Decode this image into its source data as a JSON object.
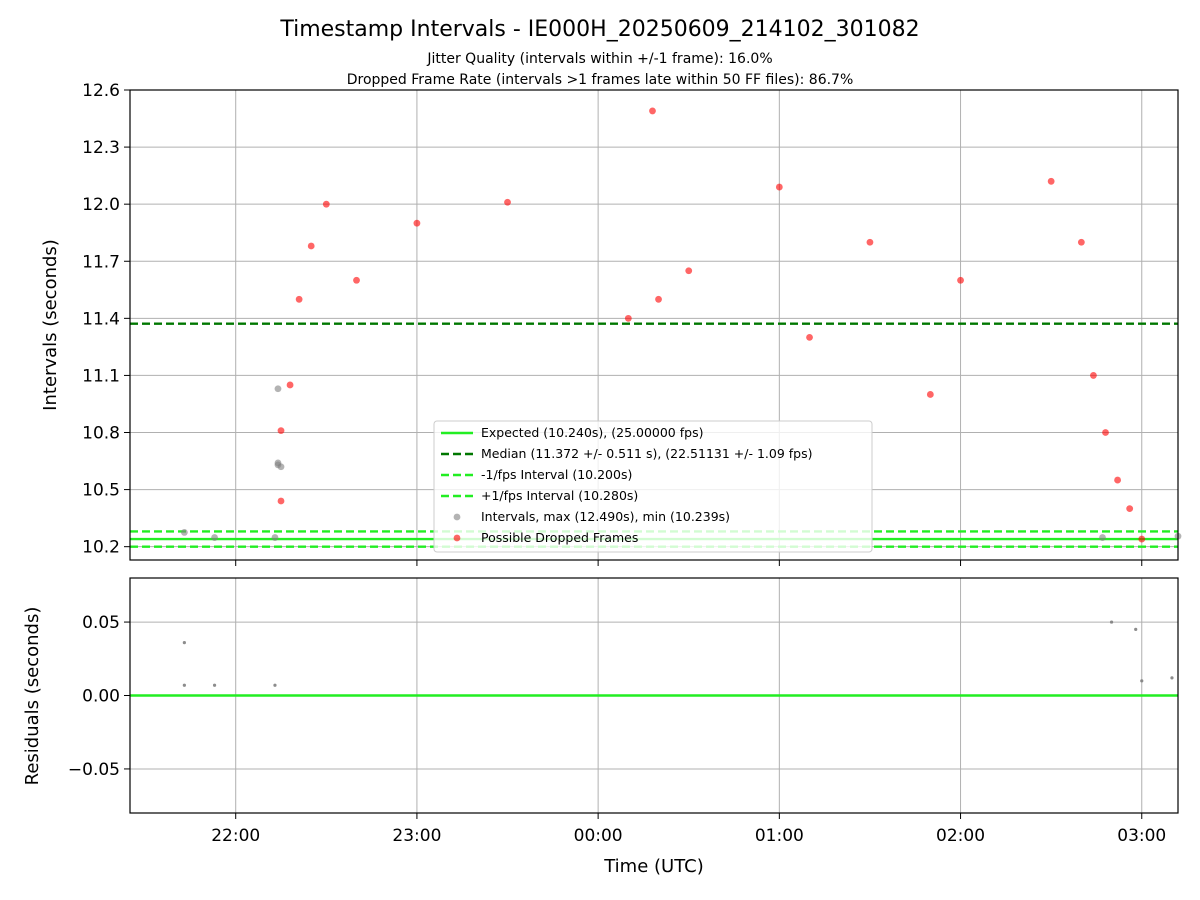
{
  "figure": {
    "title": "Timestamp Intervals - IE000H_20250609_214102_301082",
    "subtitle_line1": "Jitter Quality (intervals within +/-1 frame): 16.0%",
    "subtitle_line2": "Dropped Frame Rate (intervals >1 frames late within 50 FF files): 86.7%"
  },
  "chart_data": [
    {
      "type": "scatter",
      "ylabel": "Intervals (seconds)",
      "xlabel": "",
      "xlim": [
        "21:25",
        "03:12"
      ],
      "ylim": [
        10.13,
        12.6
      ],
      "yticks": [
        "10.2",
        "10.5",
        "10.8",
        "11.1",
        "11.4",
        "11.7",
        "12.0",
        "12.3",
        "12.6"
      ],
      "xticks": [
        "22:00",
        "23:00",
        "00:00",
        "01:00",
        "02:00",
        "03:00"
      ],
      "grid": true,
      "legend_position": "lower center",
      "reference_lines": [
        {
          "label": "Expected (10.240s), (25.00000 fps)",
          "y": 10.24,
          "style": "solid",
          "color": "#22ee22"
        },
        {
          "label": "Median (11.372 +/- 0.511 s), (22.51131 +/- 1.09 fps)",
          "y": 11.372,
          "style": "dashed",
          "color": "#007700"
        },
        {
          "label": "-1/fps Interval (10.200s)",
          "y": 10.2,
          "style": "dashed",
          "color": "#22ee22"
        },
        {
          "label": "+1/fps Interval (10.280s)",
          "y": 10.28,
          "style": "dashed",
          "color": "#22ee22"
        }
      ],
      "series": [
        {
          "name": "Intervals, max (12.490s), min (10.239s)",
          "color": "#808080",
          "points": [
            [
              "21:43",
              10.275
            ],
            [
              "21:53",
              10.248
            ],
            [
              "22:13",
              10.248
            ],
            [
              "22:14",
              11.03
            ],
            [
              "22:14",
              10.63
            ],
            [
              "22:14",
              10.64
            ],
            [
              "22:15",
              10.62
            ],
            [
              "02:47",
              10.248
            ],
            [
              "03:12",
              10.255
            ]
          ]
        },
        {
          "name": "Possible Dropped Frames",
          "color": "#ff0000",
          "points": [
            [
              "22:15",
              10.44
            ],
            [
              "22:15",
              10.81
            ],
            [
              "22:18",
              11.05
            ],
            [
              "22:21",
              11.5
            ],
            [
              "22:25",
              11.78
            ],
            [
              "22:30",
              12.0
            ],
            [
              "22:40",
              11.6
            ],
            [
              "23:00",
              11.9
            ],
            [
              "23:30",
              12.01
            ],
            [
              "00:10",
              11.4
            ],
            [
              "00:18",
              12.49
            ],
            [
              "00:20",
              11.5
            ],
            [
              "00:30",
              11.65
            ],
            [
              "01:00",
              12.09
            ],
            [
              "01:10",
              11.3
            ],
            [
              "01:30",
              11.8
            ],
            [
              "01:50",
              11.0
            ],
            [
              "02:00",
              11.6
            ],
            [
              "02:30",
              12.12
            ],
            [
              "02:40",
              11.8
            ],
            [
              "02:44",
              11.1
            ],
            [
              "02:48",
              10.8
            ],
            [
              "02:52",
              10.55
            ],
            [
              "02:56",
              10.4
            ],
            [
              "03:00",
              10.24
            ]
          ]
        }
      ]
    },
    {
      "type": "scatter",
      "ylabel": "Residuals (seconds)",
      "xlabel": "Time (UTC)",
      "ylim": [
        -0.08,
        0.08
      ],
      "yticks": [
        "−0.05",
        "0.00",
        "0.05"
      ],
      "xticks": [
        "22:00",
        "23:00",
        "00:00",
        "01:00",
        "02:00",
        "03:00"
      ],
      "grid": true,
      "reference_lines": [
        {
          "y": 0.0,
          "style": "solid",
          "color": "#22ee22"
        }
      ],
      "series": [
        {
          "color": "#808080",
          "points": [
            [
              "21:43",
              0.036
            ],
            [
              "21:43",
              0.007
            ],
            [
              "21:53",
              0.007
            ],
            [
              "22:13",
              0.007
            ],
            [
              "02:50",
              0.05
            ],
            [
              "02:58",
              0.045
            ],
            [
              "03:00",
              0.01
            ],
            [
              "03:10",
              0.012
            ]
          ]
        }
      ]
    }
  ]
}
